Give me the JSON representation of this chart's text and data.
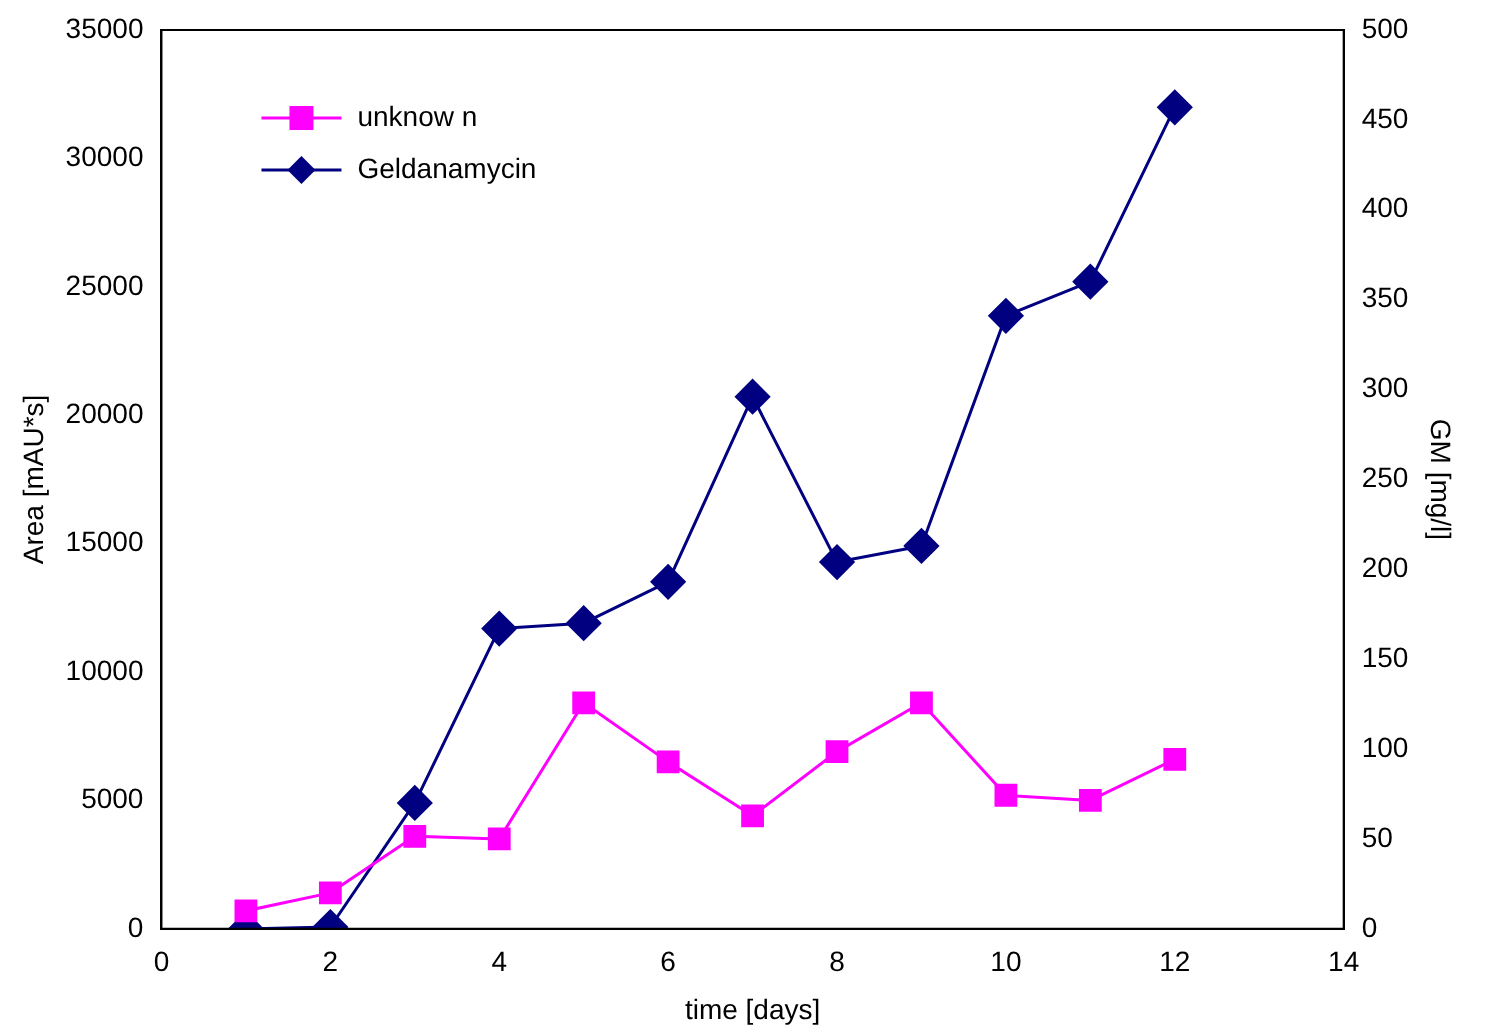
{
  "chart_data": {
    "type": "line",
    "xlabel": "time [days]",
    "ylabel": "Area [mAU*s]",
    "y2label": "GM [mg/l]",
    "x": [
      1,
      2,
      3,
      4,
      5,
      6,
      7,
      8,
      9,
      10,
      11,
      12
    ],
    "series": [
      {
        "name": "unknow n",
        "color": "#ff00ff",
        "marker": "square",
        "values": [
          700,
          1400,
          3600,
          3500,
          8800,
          6500,
          4400,
          6900,
          8800,
          5200,
          5000,
          6600
        ]
      },
      {
        "name": "Geldanamycin",
        "color": "#000080",
        "marker": "diamond",
        "axis": "y2",
        "values": [
          0,
          1,
          70,
          167,
          170,
          193,
          296,
          204,
          213,
          341,
          360,
          457
        ]
      }
    ],
    "xlim": [
      0,
      14
    ],
    "xticks": [
      0,
      2,
      4,
      6,
      8,
      10,
      12,
      14
    ],
    "ylim": [
      0,
      35000
    ],
    "yticks": [
      0,
      5000,
      10000,
      15000,
      20000,
      25000,
      30000,
      35000
    ],
    "y2lim": [
      0,
      500
    ],
    "y2ticks": [
      0,
      50,
      100,
      150,
      200,
      250,
      300,
      350,
      400,
      450,
      500
    ],
    "grid": false,
    "legend": "top left",
    "line_style": "solid"
  }
}
